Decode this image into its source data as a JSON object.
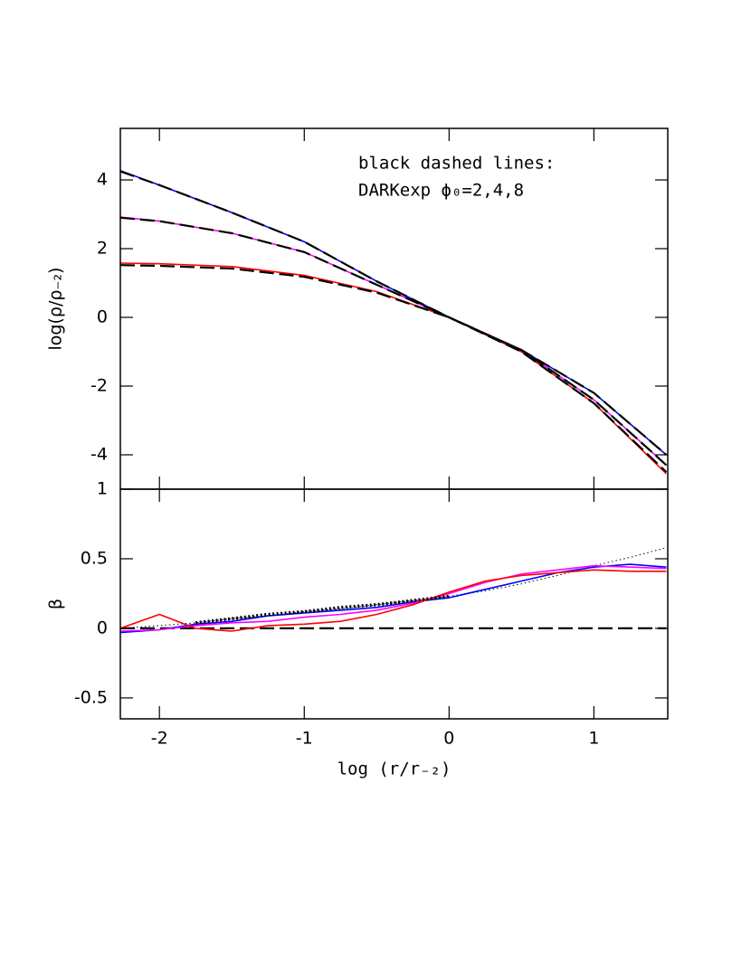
{
  "chart_data": [
    {
      "type": "line",
      "ylabel": "log(ρ/ρ₋₂)",
      "annotations": [
        "black dashed lines:",
        "DARKexp  ϕ₀=2,4,8"
      ],
      "xlim": [
        -2.27,
        1.51
      ],
      "xticks": [
        -2,
        -1,
        0,
        1
      ],
      "show_xtick_labels": false,
      "ylim": [
        -5,
        5.5
      ],
      "yticks": [
        -4,
        -2,
        0,
        2,
        4
      ],
      "x": [
        -2.27,
        -2,
        -1.5,
        -1,
        -0.5,
        0,
        0.5,
        1,
        1.5
      ],
      "series": [
        {
          "color": "#0000ff",
          "style": "solid",
          "values": [
            4.27,
            3.85,
            3.05,
            2.2,
            1.05,
            0,
            -0.95,
            -2.2,
            -4.0
          ]
        },
        {
          "color": "#ff00ff",
          "style": "solid",
          "values": [
            2.92,
            2.8,
            2.45,
            1.9,
            0.95,
            0,
            -0.95,
            -2.4,
            -4.3
          ]
        },
        {
          "color": "#ff0000",
          "style": "solid",
          "values": [
            1.58,
            1.56,
            1.48,
            1.22,
            0.75,
            0,
            -1.0,
            -2.5,
            -4.55
          ]
        },
        {
          "color": "#000000",
          "style": "dashed",
          "values": [
            4.25,
            3.85,
            3.05,
            2.2,
            1.05,
            0,
            -0.95,
            -2.2,
            -4.0
          ]
        },
        {
          "color": "#000000",
          "style": "dashed",
          "values": [
            2.9,
            2.8,
            2.45,
            1.9,
            0.95,
            0,
            -0.95,
            -2.4,
            -4.3
          ]
        },
        {
          "color": "#000000",
          "style": "dashed",
          "values": [
            1.52,
            1.5,
            1.42,
            1.18,
            0.72,
            0,
            -1.0,
            -2.5,
            -4.5
          ]
        }
      ]
    },
    {
      "type": "line",
      "xlabel": "log (r/r₋₂)",
      "ylabel": "β",
      "xlim": [
        -2.27,
        1.51
      ],
      "xticks": [
        -2,
        -1,
        0,
        1
      ],
      "show_xtick_labels": true,
      "ylim": [
        -0.65,
        1
      ],
      "yticks": [
        -0.5,
        0,
        0.5,
        1
      ],
      "x": [
        -2.27,
        -2,
        -1.75,
        -1.5,
        -1.25,
        -1,
        -0.75,
        -0.5,
        -0.25,
        0,
        0.25,
        0.5,
        0.75,
        1,
        1.25,
        1.5
      ],
      "series": [
        {
          "color": "#000000",
          "style": "dashed",
          "values": [
            0,
            0,
            0,
            0,
            0,
            0,
            0,
            0,
            0,
            0,
            0,
            0,
            0,
            0,
            0,
            0
          ]
        },
        {
          "color": "#000000",
          "style": "dotted",
          "values": [
            0.0,
            0.02,
            0.04,
            0.07,
            0.09,
            0.12,
            0.14,
            0.17,
            0.2,
            0.23,
            0.27,
            0.32,
            0.38,
            0.45,
            0.51,
            0.58
          ]
        },
        {
          "color": "#0000ff",
          "style": "solid",
          "values": [
            -0.03,
            -0.01,
            0.03,
            0.05,
            0.09,
            0.11,
            0.13,
            0.15,
            0.19,
            0.22,
            0.28,
            0.34,
            0.4,
            0.44,
            0.46,
            0.44
          ]
        },
        {
          "color": "#ff00ff",
          "style": "solid",
          "values": [
            -0.02,
            -0.01,
            0.02,
            0.04,
            0.05,
            0.08,
            0.1,
            0.13,
            0.18,
            0.25,
            0.33,
            0.39,
            0.42,
            0.45,
            0.44,
            0.43
          ]
        },
        {
          "color": "#ff0000",
          "style": "solid",
          "values": [
            0,
            0.1,
            0.0,
            -0.02,
            0.02,
            0.03,
            0.05,
            0.1,
            0.17,
            0.26,
            0.34,
            0.38,
            0.4,
            0.42,
            0.41,
            0.41
          ]
        },
        {
          "color": "#000000",
          "style": "heavy-dotted",
          "values": [
            null,
            null,
            0.04,
            0.07,
            0.1,
            0.12,
            0.15,
            0.17,
            0.2,
            0.23,
            null,
            null,
            null,
            null,
            null,
            null
          ]
        }
      ]
    }
  ]
}
